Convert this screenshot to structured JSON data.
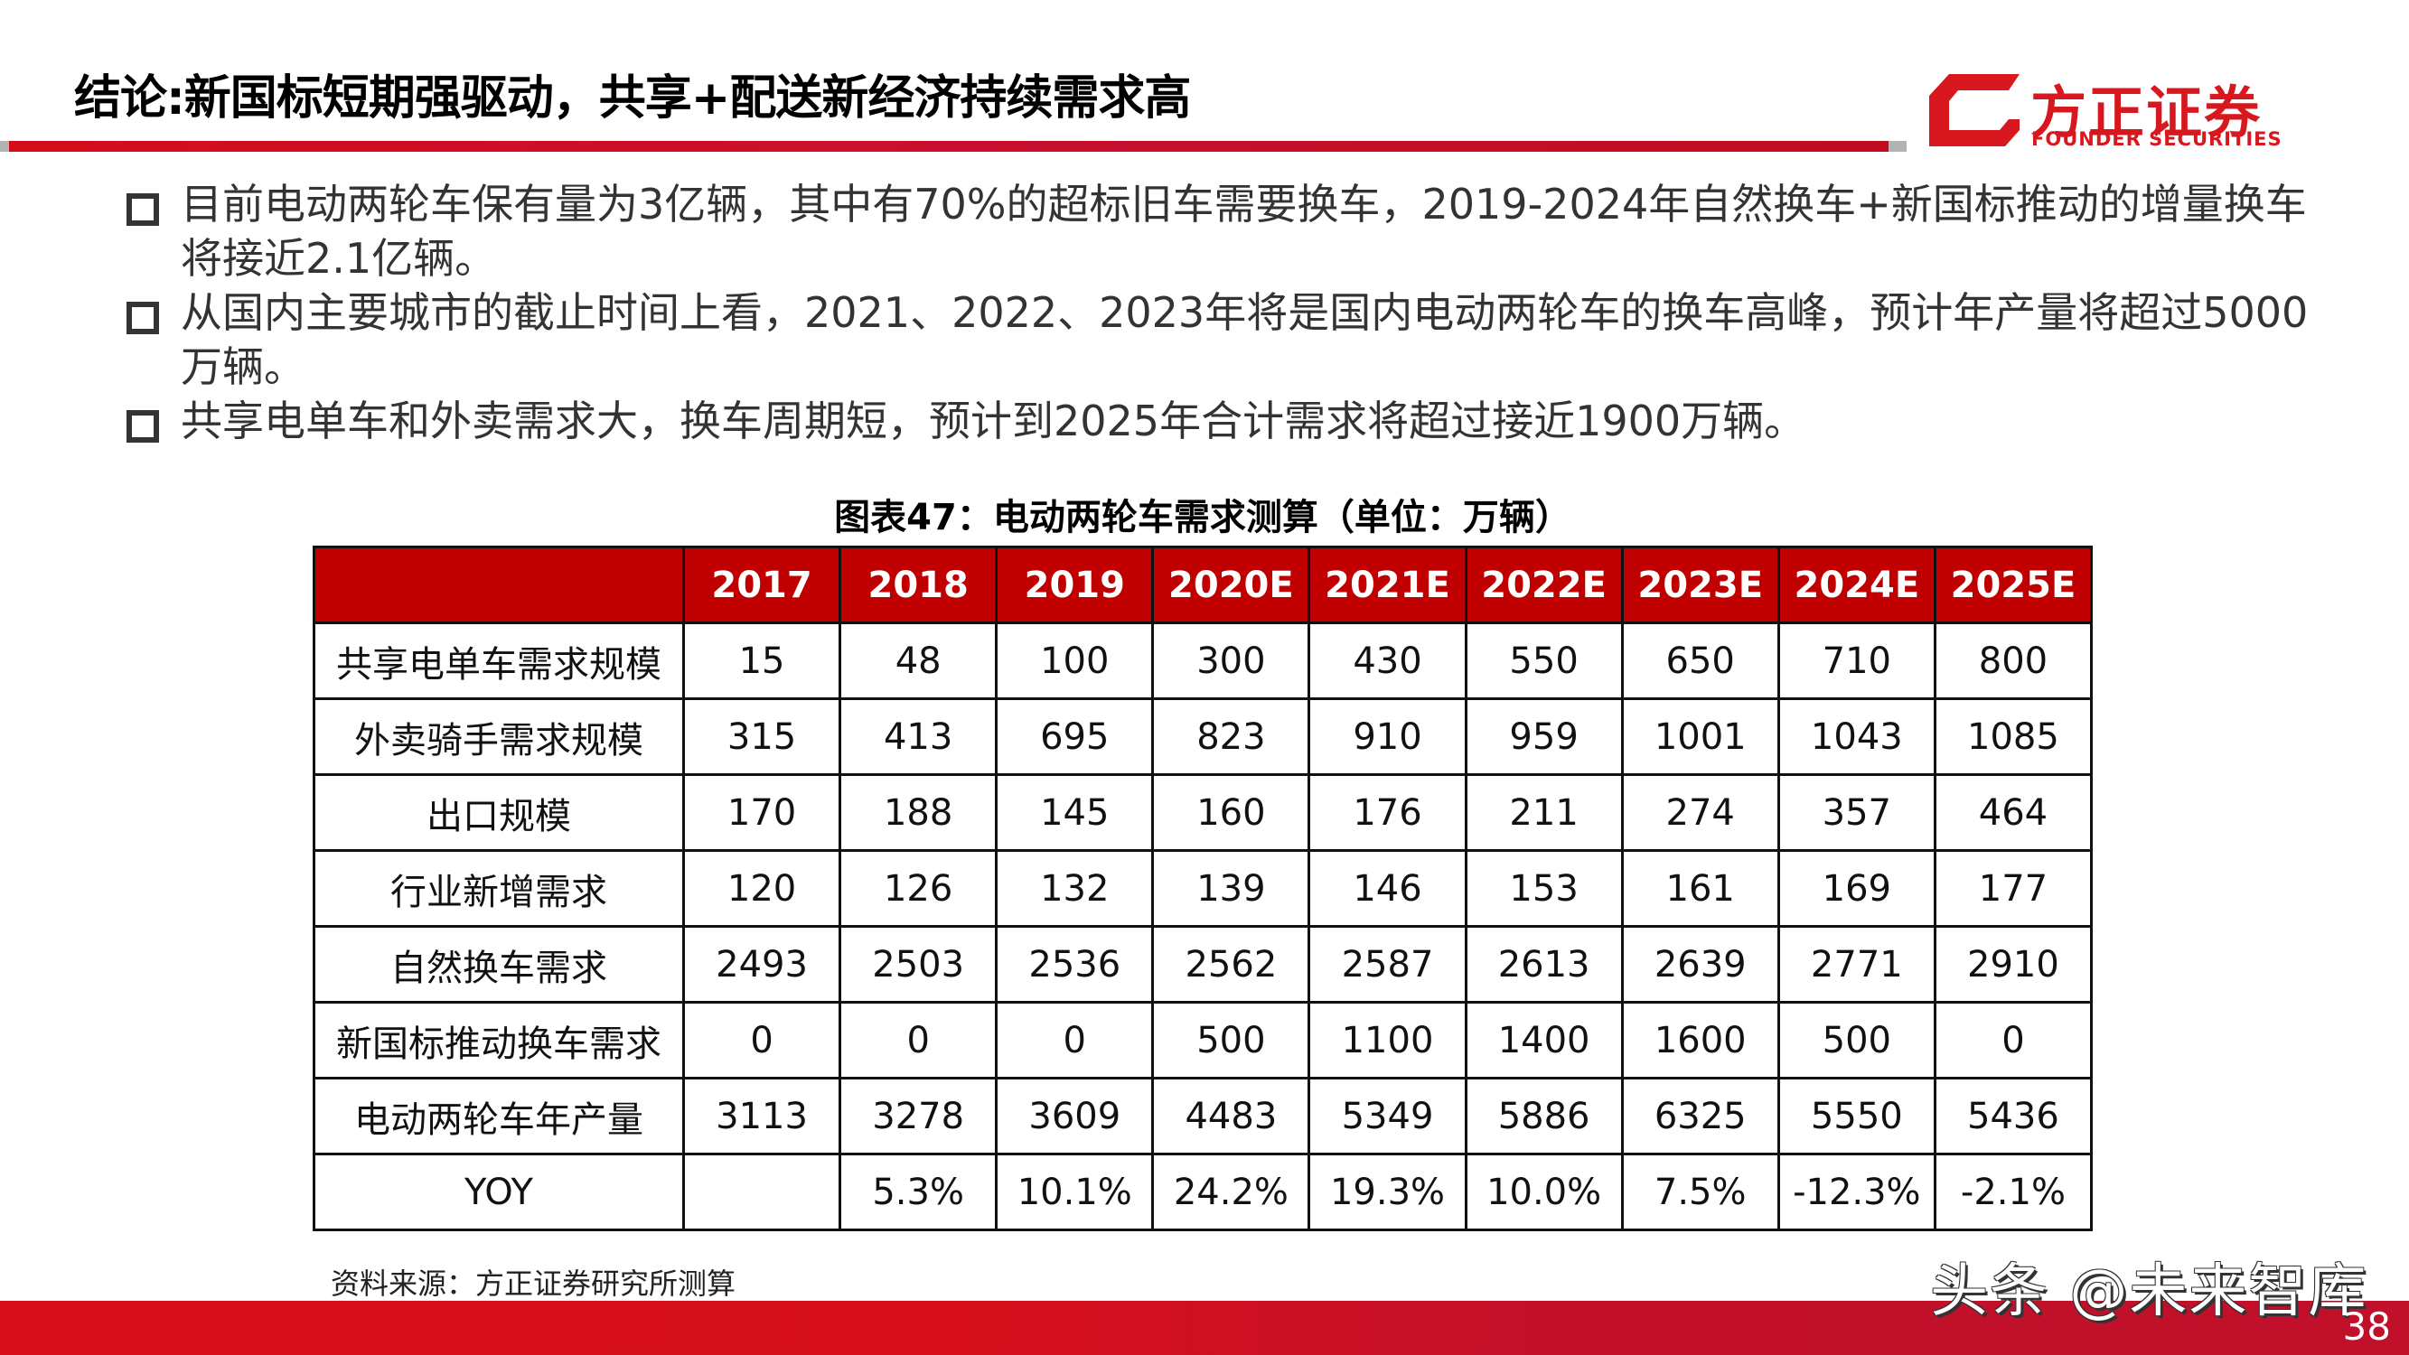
{
  "header": {
    "title": "结论:新国标短期强驱动，共享+配送新经济持续需求高",
    "logo": {
      "icon": "founder-logo-mark-icon",
      "name_cn": "方正证券",
      "name_en": "FOUNDER SECURITIES",
      "color": "#d7191f"
    },
    "accent_color": "#d40d1b"
  },
  "bullets": [
    {
      "icon": "hollow-square-bullet-icon",
      "text": "目前电动两轮车保有量为3亿辆，其中有70%的超标旧车需要换车，2019-2024年自然换车+新国标推动的增量换车将接近2.1亿辆。"
    },
    {
      "icon": "hollow-square-bullet-icon",
      "text": "从国内主要城市的截止时间上看，2021、2022、2023年将是国内电动两轮车的换车高峰，预计年产量将超过5000万辆。"
    },
    {
      "icon": "hollow-square-bullet-icon",
      "text": "共享电单车和外卖需求大，换车周期短，预计到2025年合计需求将超过接近1900万辆。"
    }
  ],
  "table": {
    "caption": "图表47：电动两轮车需求测算（单位：万辆）",
    "header_color": "#c00000",
    "columns": [
      "",
      "2017",
      "2018",
      "2019",
      "2020E",
      "2021E",
      "2022E",
      "2023E",
      "2024E",
      "2025E"
    ],
    "rows": [
      {
        "label": "共享电单车需求规模",
        "values": [
          "15",
          "48",
          "100",
          "300",
          "430",
          "550",
          "650",
          "710",
          "800"
        ]
      },
      {
        "label": "外卖骑手需求规模",
        "values": [
          "315",
          "413",
          "695",
          "823",
          "910",
          "959",
          "1001",
          "1043",
          "1085"
        ]
      },
      {
        "label": "出口规模",
        "values": [
          "170",
          "188",
          "145",
          "160",
          "176",
          "211",
          "274",
          "357",
          "464"
        ]
      },
      {
        "label": "行业新增需求",
        "values": [
          "120",
          "126",
          "132",
          "139",
          "146",
          "153",
          "161",
          "169",
          "177"
        ]
      },
      {
        "label": "自然换车需求",
        "values": [
          "2493",
          "2503",
          "2536",
          "2562",
          "2587",
          "2613",
          "2639",
          "2771",
          "2910"
        ]
      },
      {
        "label": "新国标推动换车需求",
        "values": [
          "0",
          "0",
          "0",
          "500",
          "1100",
          "1400",
          "1600",
          "500",
          "0"
        ]
      },
      {
        "label": "电动两轮车年产量",
        "values": [
          "3113",
          "3278",
          "3609",
          "4483",
          "5349",
          "5886",
          "6325",
          "5550",
          "5436"
        ]
      },
      {
        "label": "YOY",
        "values": [
          "",
          "5.3%",
          "10.1%",
          "24.2%",
          "19.3%",
          "10.0%",
          "7.5%",
          "-12.3%",
          "-2.1%"
        ]
      }
    ],
    "source": "资料来源：方正证券研究所测算"
  },
  "footer": {
    "watermark": "头条 @未来智库",
    "page_number": "38",
    "color": "#d50e1a"
  }
}
